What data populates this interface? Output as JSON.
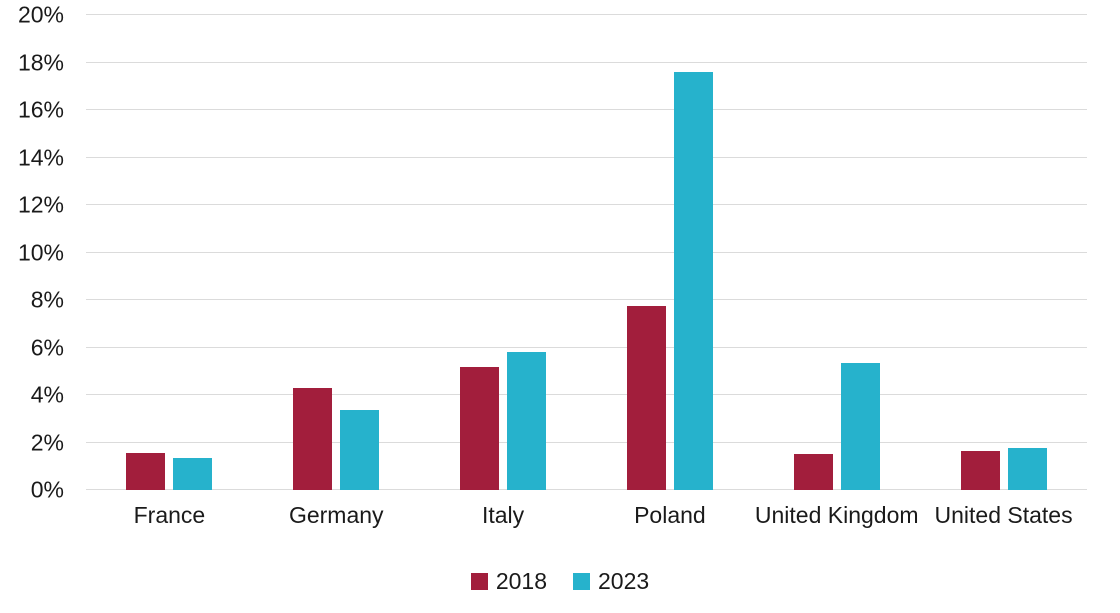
{
  "chart_data": {
    "type": "bar",
    "title": "",
    "categories": [
      "France",
      "Germany",
      "Italy",
      "Poland",
      "United Kingdom",
      "United States"
    ],
    "series": [
      {
        "name": "2018",
        "color": "#A21E3C",
        "values": [
          1.55,
          4.3,
          5.2,
          7.75,
          1.5,
          1.65
        ]
      },
      {
        "name": "2023",
        "color": "#26B2CC",
        "values": [
          1.35,
          3.35,
          5.8,
          17.6,
          5.35,
          1.75
        ]
      }
    ],
    "ylim": [
      0,
      20
    ],
    "ytick_values": [
      0,
      2,
      4,
      6,
      8,
      10,
      12,
      14,
      16,
      18,
      20
    ],
    "ytick_labels": [
      "0%",
      "2%",
      "4%",
      "6%",
      "8%",
      "10%",
      "12%",
      "14%",
      "16%",
      "18%",
      "20%"
    ],
    "grid": true,
    "legend_position": "bottom",
    "gridline_color": "#DBDBDB",
    "text_color": "#1A1A1A",
    "background": "#FFFFFF"
  }
}
